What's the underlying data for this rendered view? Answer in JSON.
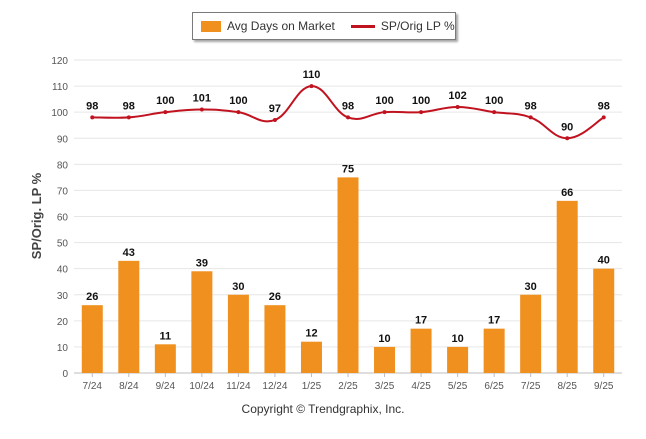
{
  "chart_data": {
    "type": "bar+line",
    "categories": [
      "7/24",
      "8/24",
      "9/24",
      "10/24",
      "11/24",
      "12/24",
      "1/25",
      "2/25",
      "3/25",
      "4/25",
      "5/25",
      "6/25",
      "7/25",
      "8/25",
      "9/25"
    ],
    "series": [
      {
        "name": "Avg Days on Market",
        "kind": "bar",
        "color": "#f0901e",
        "values": [
          26,
          43,
          11,
          39,
          30,
          26,
          12,
          75,
          10,
          17,
          10,
          17,
          30,
          66,
          40
        ]
      },
      {
        "name": "SP/Orig LP %",
        "kind": "line",
        "color": "#c1121f",
        "values": [
          98,
          98,
          100,
          101,
          100,
          97,
          110,
          98,
          100,
          100,
          102,
          100,
          98,
          90,
          98
        ]
      }
    ],
    "title": "",
    "xlabel": "",
    "ylabel": "SP/Orig. LP %",
    "ylim": [
      0,
      120
    ],
    "yticks": [
      0,
      10,
      20,
      30,
      40,
      50,
      60,
      70,
      80,
      90,
      100,
      110,
      120
    ],
    "grid": true,
    "legend": "top-center"
  },
  "legend": {
    "bar_label": "Avg Days on Market",
    "line_label": "SP/Orig LP %"
  },
  "footer": {
    "copyright": "Copyright © Trendgraphix, Inc."
  }
}
